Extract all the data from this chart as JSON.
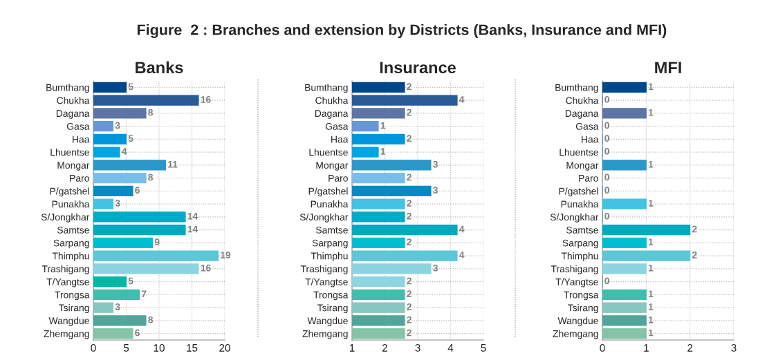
{
  "chart_data": [
    {
      "type": "bar",
      "orientation": "horizontal",
      "title": "Banks",
      "annotations": [
        "Figure  2 : Branches and extension by Districts (Banks, Insurance and MFI)"
      ],
      "categories": [
        "Bumthang",
        "Chukha",
        "Dagana",
        "Gasa",
        "Haa",
        "Lhuentse",
        "Mongar",
        "Paro",
        "P/gatshel",
        "Punakha",
        "S/Jongkhar",
        "Samtse",
        "Sarpang",
        "Thimphu",
        "Trashigang",
        "T/Yangtse",
        "Trongsa",
        "Tsirang",
        "Wangdue",
        "Zhemgang"
      ],
      "values": [
        5,
        16,
        8,
        3,
        5,
        4,
        11,
        8,
        6,
        3,
        14,
        14,
        9,
        19,
        16,
        5,
        7,
        3,
        8,
        6
      ],
      "colors": [
        "#00468b",
        "#285a96",
        "#5e74a4",
        "#6699d2",
        "#0096dc",
        "#00a5e1",
        "#2b98c8",
        "#78bee8",
        "#008cc3",
        "#41c3e1",
        "#00aac8",
        "#00aabe",
        "#00bed2",
        "#5cc8d7",
        "#8cd4df",
        "#00b9a5",
        "#3fbeaf",
        "#86c8c0",
        "#52a59b",
        "#84c3a6"
      ],
      "xlim": [
        0,
        20
      ],
      "xticks": [
        0,
        5,
        10,
        15,
        20
      ],
      "grid": true,
      "data_labels": true
    },
    {
      "type": "bar",
      "orientation": "horizontal",
      "title": "Insurance",
      "categories": [
        "Bumthang",
        "Chukha",
        "Dagana",
        "Gasa",
        "Haa",
        "Lhuentse",
        "Mongar",
        "Paro",
        "P/gatshel",
        "Punakha",
        "S/Jongkhar",
        "Samtse",
        "Sarpang",
        "Thimphu",
        "Trashigang",
        "T/Yangtse",
        "Trongsa",
        "Tsirang",
        "Wangdue",
        "Zhemgang"
      ],
      "values": [
        1.6,
        3.2,
        1.6,
        0.8,
        1.6,
        0.8,
        2.4,
        1.6,
        2.4,
        1.6,
        1.6,
        3.2,
        1.6,
        3.2,
        2.4,
        1.6,
        1.6,
        1.6,
        1.6,
        1.6
      ],
      "base": [
        1,
        1,
        1,
        1,
        1,
        1,
        1,
        1,
        1,
        1,
        1,
        1,
        1,
        1,
        1,
        1,
        1,
        1,
        1,
        1
      ],
      "value_labels": [
        "2",
        "4",
        "2",
        "1",
        "2",
        "1",
        "3",
        "2",
        "3",
        "2",
        "2",
        "4",
        "2",
        "4",
        "3",
        "2",
        "2",
        "2",
        "2",
        "2"
      ],
      "colors": [
        "#00468b",
        "#285a96",
        "#5e74a4",
        "#6699d2",
        "#0096dc",
        "#00a5e1",
        "#2b98c8",
        "#78bee8",
        "#008cc3",
        "#41c3e1",
        "#00aac8",
        "#00aabe",
        "#00bed2",
        "#5cc8d7",
        "#8cd4df",
        "#8dd5e0",
        "#3fbeaf",
        "#86c8c0",
        "#52a59b",
        "#84c3a6"
      ],
      "xlim": [
        1,
        5
      ],
      "xticks": [
        1,
        2,
        3,
        4,
        5
      ],
      "grid": true
    },
    {
      "type": "bar",
      "orientation": "horizontal",
      "title": "MFI",
      "categories": [
        "Bumthang",
        "Chukha",
        "Dagana",
        "Gasa",
        "Haa",
        "Lhuentse",
        "Mongar",
        "Paro",
        "P/gatshel",
        "Punakha",
        "S/Jongkhar",
        "Samtse",
        "Sarpang",
        "Thimphu",
        "Trashigang",
        "T/Yangtse",
        "Trongsa",
        "Tsirang",
        "Wangdue",
        "Zhemgang"
      ],
      "values": [
        1,
        0,
        1,
        0,
        0,
        0,
        1,
        0,
        0,
        1,
        0,
        2,
        1,
        2,
        1,
        0,
        1,
        1,
        1,
        1
      ],
      "colors": [
        "#00468b",
        "#285a96",
        "#5e74a4",
        "#6699d2",
        "#0096dc",
        "#00a5e1",
        "#2b98c8",
        "#78bee8",
        "#008cc3",
        "#41c3e1",
        "#00aac8",
        "#00aabe",
        "#00bed2",
        "#5cc8d7",
        "#8cd4df",
        "#00b9a5",
        "#3fbeaf",
        "#86c8c0",
        "#52a59b",
        "#84c3a6"
      ],
      "xlim": [
        0,
        3
      ],
      "xticks": [
        0,
        1,
        2,
        3
      ],
      "grid": true,
      "data_labels": true
    }
  ]
}
